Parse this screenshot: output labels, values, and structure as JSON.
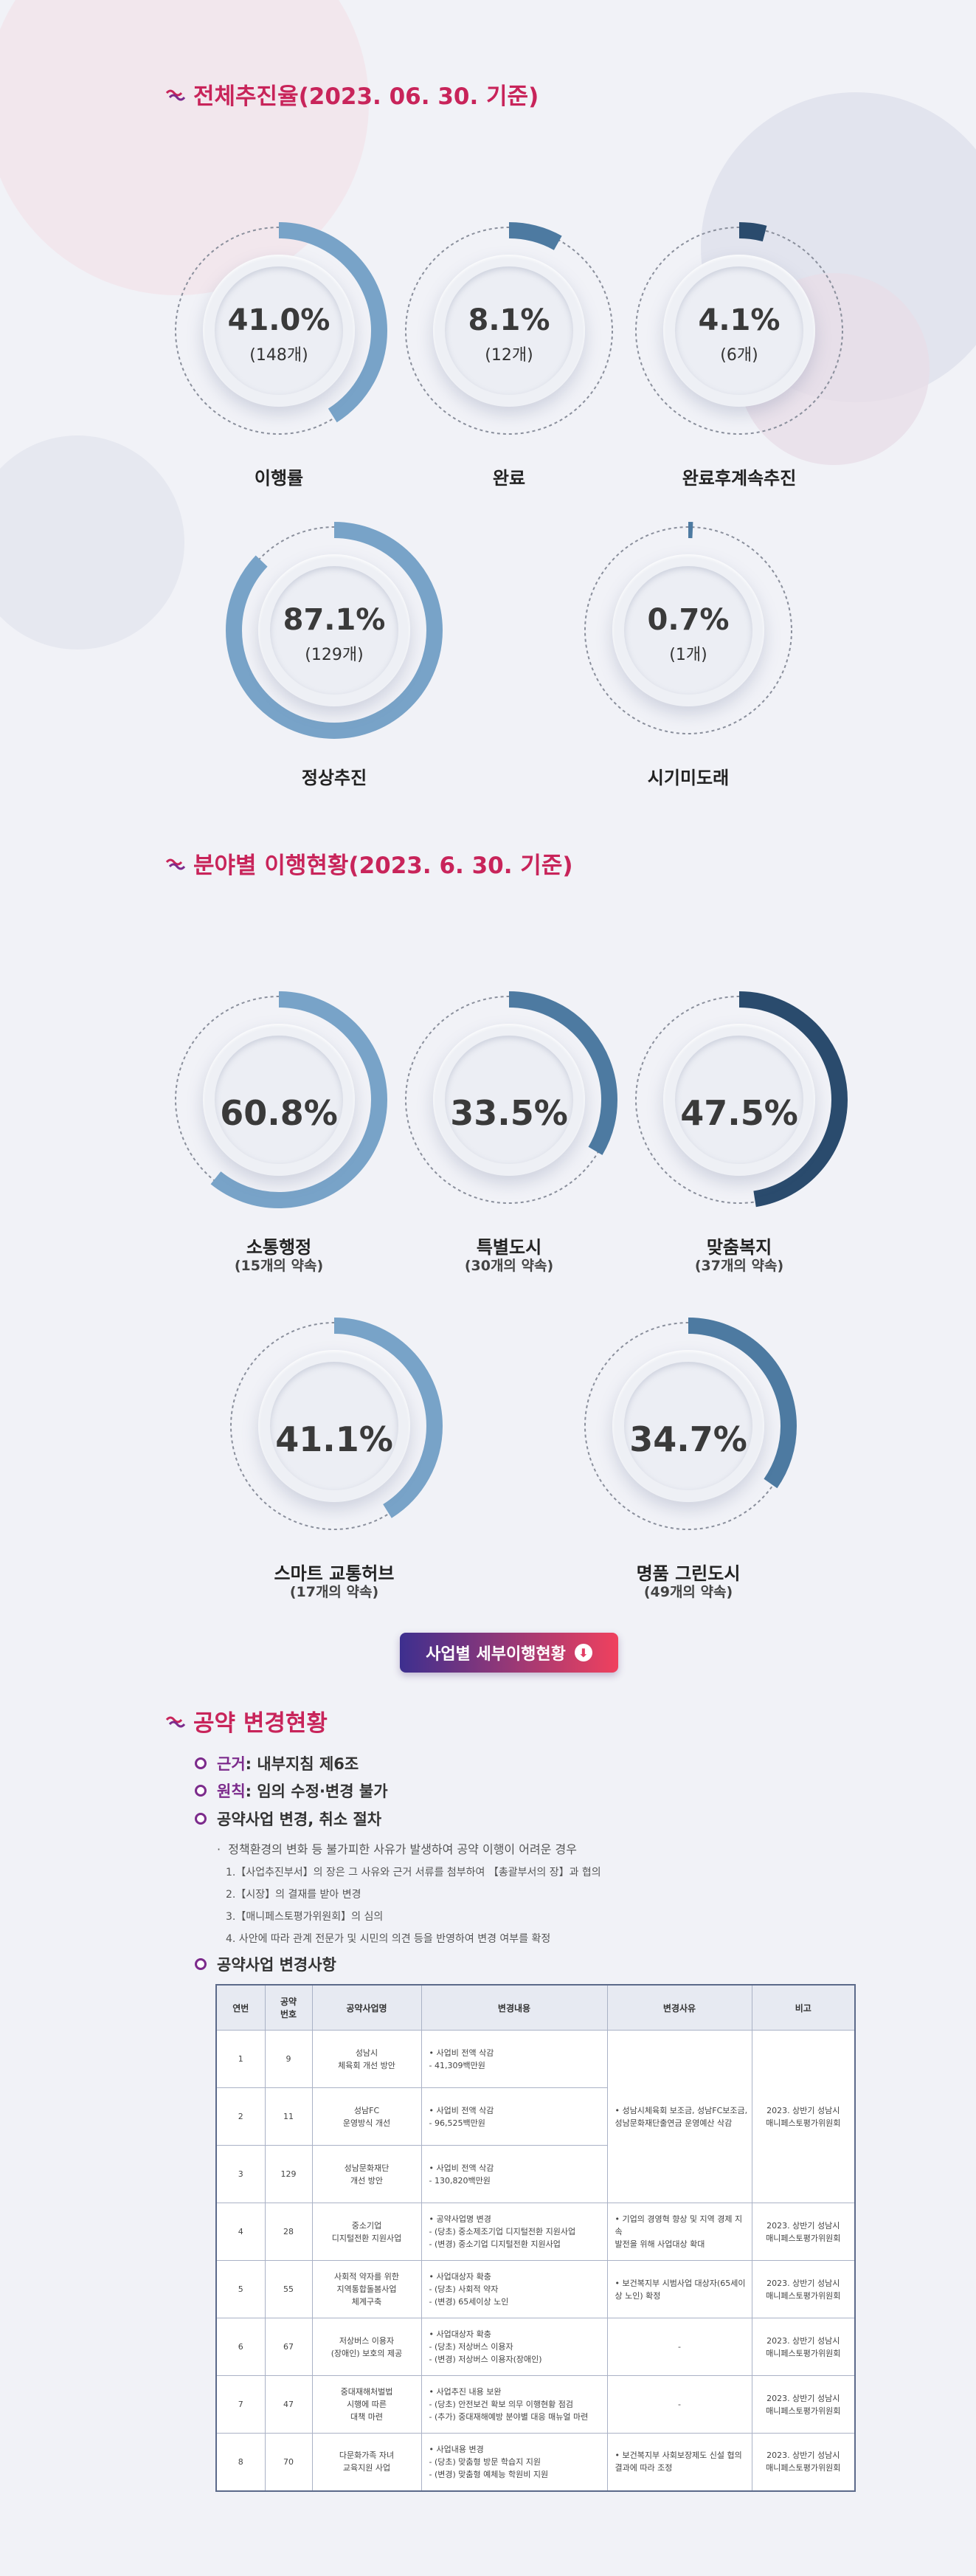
{
  "colors": {
    "ring_light": "#78a3c8",
    "ring_mid": "#4d7aa1",
    "ring_dark": "#2a4b6d",
    "accent": "#c8245a",
    "purple": "#7c2b8c"
  },
  "section1": {
    "title": "전체추진율(2023. 06. 30. 기준)",
    "icon": "wave-icon",
    "items": [
      {
        "percent": "41.0%",
        "count": "(148개)",
        "label": "이행률",
        "value": 41.0
      },
      {
        "percent": "8.1%",
        "count": "(12개)",
        "label": "완료",
        "value": 8.1
      },
      {
        "percent": "4.1%",
        "count": "(6개)",
        "label": "완료후계속추진",
        "value": 4.1
      },
      {
        "percent": "87.1%",
        "count": "(129개)",
        "label": "정상추진",
        "value": 87.1
      },
      {
        "percent": "0.7%",
        "count": "(1개)",
        "label": "시기미도래",
        "value": 0.7
      }
    ]
  },
  "section2": {
    "title": "분야별 이행현황(2023. 6. 30. 기준)",
    "items": [
      {
        "percent": "60.8%",
        "label": "소통행정",
        "sub": "(15개의 약속)",
        "value": 60.8
      },
      {
        "percent": "33.5%",
        "label": "특별도시",
        "sub": "(30개의 약속)",
        "value": 33.5
      },
      {
        "percent": "47.5%",
        "label": "맞춤복지",
        "sub": "(37개의 약속)",
        "value": 47.5
      },
      {
        "percent": "41.1%",
        "label": "스마트 교통허브",
        "sub": "(17개의 약속)",
        "value": 41.1
      },
      {
        "percent": "34.7%",
        "label": "명품 그린도시",
        "sub": "(49개의 약속)",
        "value": 34.7
      }
    ],
    "button_label": "사업별 세부이행현황"
  },
  "section3": {
    "title": "공약 변경현황",
    "rule1_key": "근거",
    "rule1_text": " : 내부지침 제6조",
    "rule2_key": "원칙",
    "rule2_text": " : 임의 수정·변경 불가",
    "rule3": "공약사업 변경, 취소 절차",
    "note": "정책환경의 변화 등 불가피한 사유가 발생하여 공약 이행이 어려운 경우",
    "steps": [
      "1.【사업추진부서】의 장은 그 사유와 근거 서류를 첨부하여 【총괄부서의 장】과 협의",
      "2.【시장】의 결재를 받아 변경",
      "3.【매니페스토평가위원회】의 심의",
      "4. 사안에 따라 관계 전문가 및 시민의 의견 등을 반영하여 변경 여부를 확정"
    ],
    "table_title": "공약사업 변경사항",
    "headers": [
      "연번",
      "공약\n번호",
      "공약사업명",
      "변경내용",
      "변경사유",
      "비고"
    ],
    "rows": [
      {
        "no": "1",
        "pno": "9",
        "name": "성남시\n체육회 개선 방안",
        "change": "• 사업비 전액 삭감\n- 41,309백만원"
      },
      {
        "no": "2",
        "pno": "11",
        "name": "성남FC\n운영방식 개선",
        "change": "• 사업비 전액 삭감\n- 96,525백만원"
      },
      {
        "no": "3",
        "pno": "129",
        "name": "성남문화재단\n개선 방안",
        "change": "• 사업비 전액 삭감\n- 130,820백만원"
      },
      {
        "no": "4",
        "pno": "28",
        "name": "중소기업\n디지털전환 지원사업",
        "change": "• 공약사업명 변경\n- (당초) 중소제조기업 디지털전환 지원사업\n- (변경) 중소기업 디지털전환 지원사업",
        "reason": "• 기업의 경영혁 향상 및 지역 경제 지속\n발전을 위해 사업대상 확대",
        "remark": "2023. 상반기 성남시\n매니페스토평가위원회"
      },
      {
        "no": "5",
        "pno": "55",
        "name": "사회적 약자를 위한\n지역통합돌봄사업\n체계구축",
        "change": "• 사업대상자 확충\n- (당초) 사회적 약자\n- (변경) 65세이상 노인",
        "reason": "• 보건복지부 시범사업 대상자(65세이\n상 노인) 확정",
        "remark": "2023. 상반기 성남시\n매니페스토평가위원회"
      },
      {
        "no": "6",
        "pno": "67",
        "name": "저상버스 이용자\n(장애인) 보호의 제공",
        "change": "• 사업대상자 확충\n- (당초) 저상버스 이용자\n- (변경) 저상버스 이용자(장애인)",
        "reason": "-",
        "remark": "2023. 상반기 성남시\n매니페스토평가위원회"
      },
      {
        "no": "7",
        "pno": "47",
        "name": "중대재해처벌법\n시행에 따른\n대책 마련",
        "change": "• 사업추진 내용 보완\n- (당초) 안전보건 확보 의무 이행현황 점검\n- (추가) 중대재해예방 분야별 대응 매뉴얼 마련",
        "reason": "-",
        "remark": "2023. 상반기 성남시\n매니페스토평가위원회"
      },
      {
        "no": "8",
        "pno": "70",
        "name": "다문화가족 자녀\n교육지원 사업",
        "change": "• 사업내용 변경\n- (당초) 맞춤형 방문 학습지 지원\n- (변경) 맞춤형 예체능 학원비 지원",
        "reason": "• 보건복지부 사회보장제도 신설 협의\n결과에 따라 조정",
        "remark": "2023. 상반기 성남시\n매니페스토평가위원회"
      }
    ],
    "merged_reason": "• 성남시체육회 보조금, 성남FC보조금,\n성남문화재단출연금 운영예산 삭감",
    "merged_remark": "2023. 상반기 성남시\n매니페스토평가위원회"
  }
}
